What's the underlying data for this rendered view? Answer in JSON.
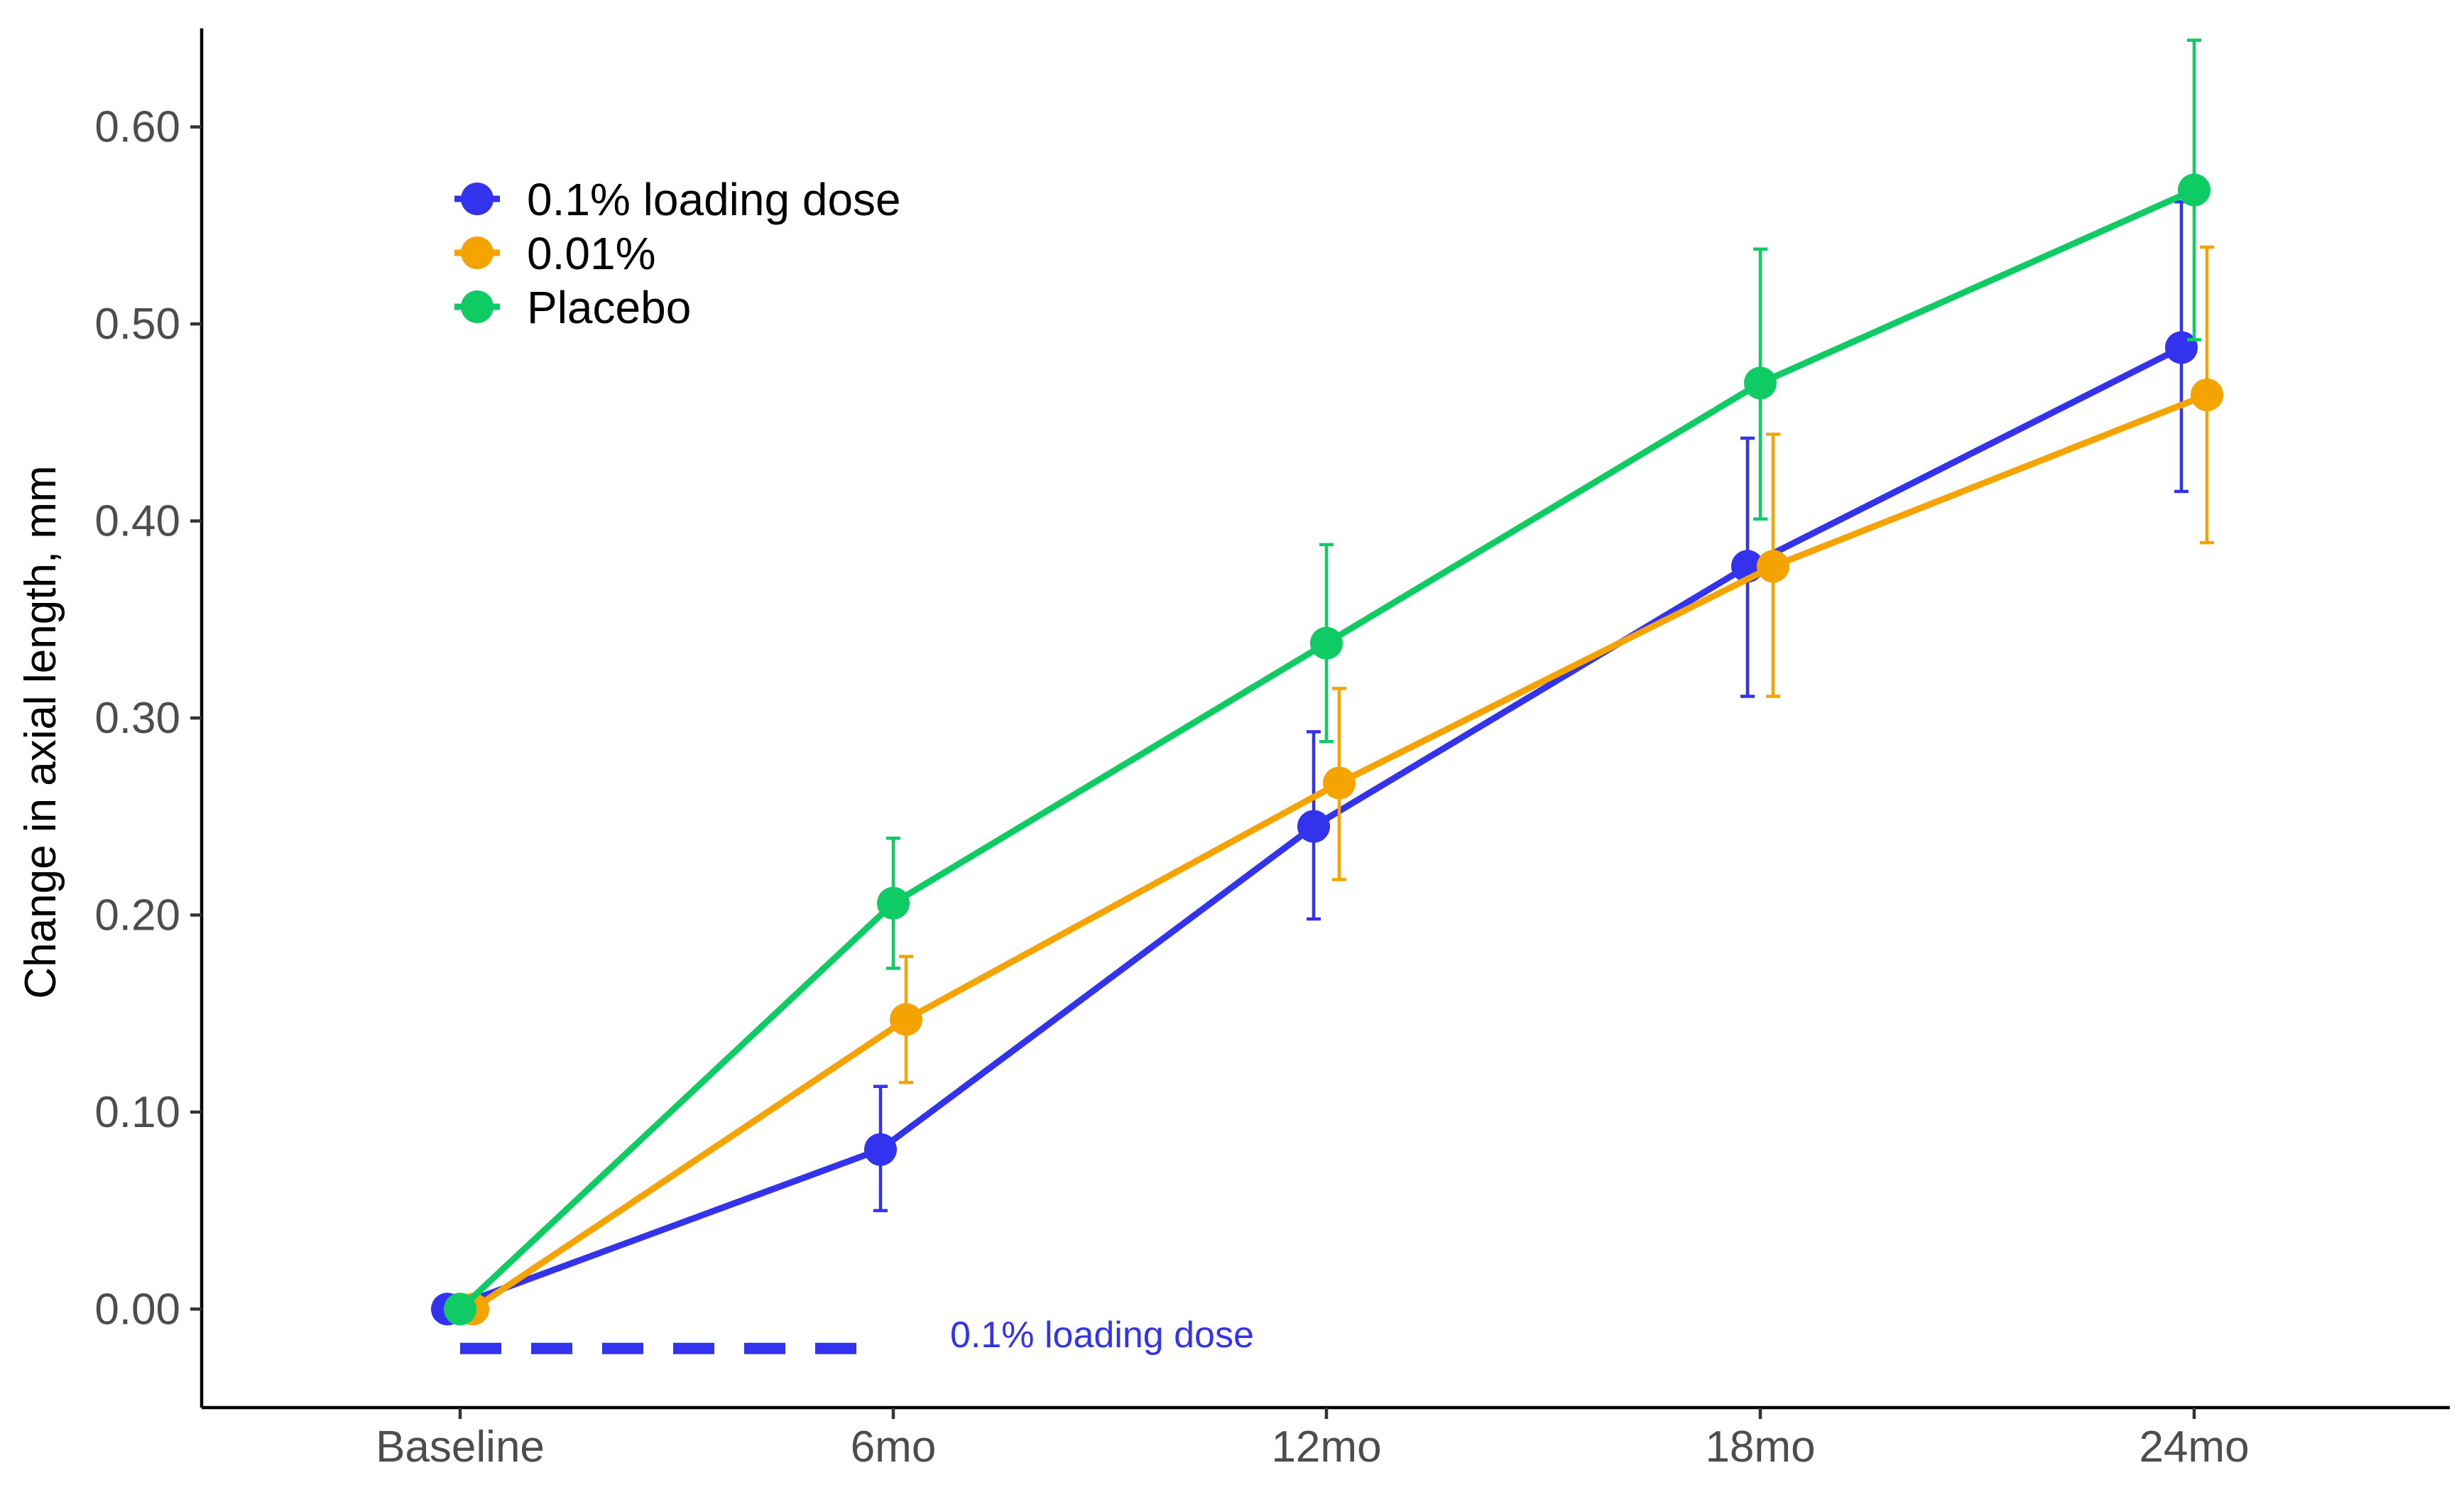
{
  "chart_data": {
    "type": "line",
    "title": "",
    "xlabel": "",
    "ylabel": "Change in axial length, mm",
    "categories": [
      "Baseline",
      "6mo",
      "12mo",
      "18mo",
      "24mo"
    ],
    "ylim": [
      -0.05,
      0.65
    ],
    "yticks": [
      "0.00",
      "0.10",
      "0.20",
      "0.30",
      "0.40",
      "0.50",
      "0.60"
    ],
    "grid": false,
    "legend_position": "top-left",
    "series": [
      {
        "name": "0.1% loading dose",
        "color": "#3333ee",
        "values": [
          0.0,
          0.081,
          0.245,
          0.377,
          0.488
        ],
        "lower": [
          0.0,
          0.05,
          0.198,
          0.311,
          0.415
        ],
        "upper": [
          0.0,
          0.113,
          0.293,
          0.442,
          0.562
        ]
      },
      {
        "name": "0.01%",
        "color": "#f5a300",
        "values": [
          0.0,
          0.147,
          0.267,
          0.377,
          0.464
        ],
        "lower": [
          0.0,
          0.115,
          0.218,
          0.311,
          0.389
        ],
        "upper": [
          0.0,
          0.179,
          0.315,
          0.444,
          0.539
        ]
      },
      {
        "name": "Placebo",
        "color": "#0ecb64",
        "values": [
          0.0,
          0.206,
          0.338,
          0.47,
          0.568
        ],
        "lower": [
          0.0,
          0.173,
          0.288,
          0.401,
          0.492
        ],
        "upper": [
          0.0,
          0.239,
          0.388,
          0.538,
          0.644
        ]
      }
    ],
    "annotation": {
      "text": "0.1% loading dose",
      "color": "#3333ee",
      "from": "Baseline",
      "to": "6mo",
      "y": -0.02
    }
  }
}
